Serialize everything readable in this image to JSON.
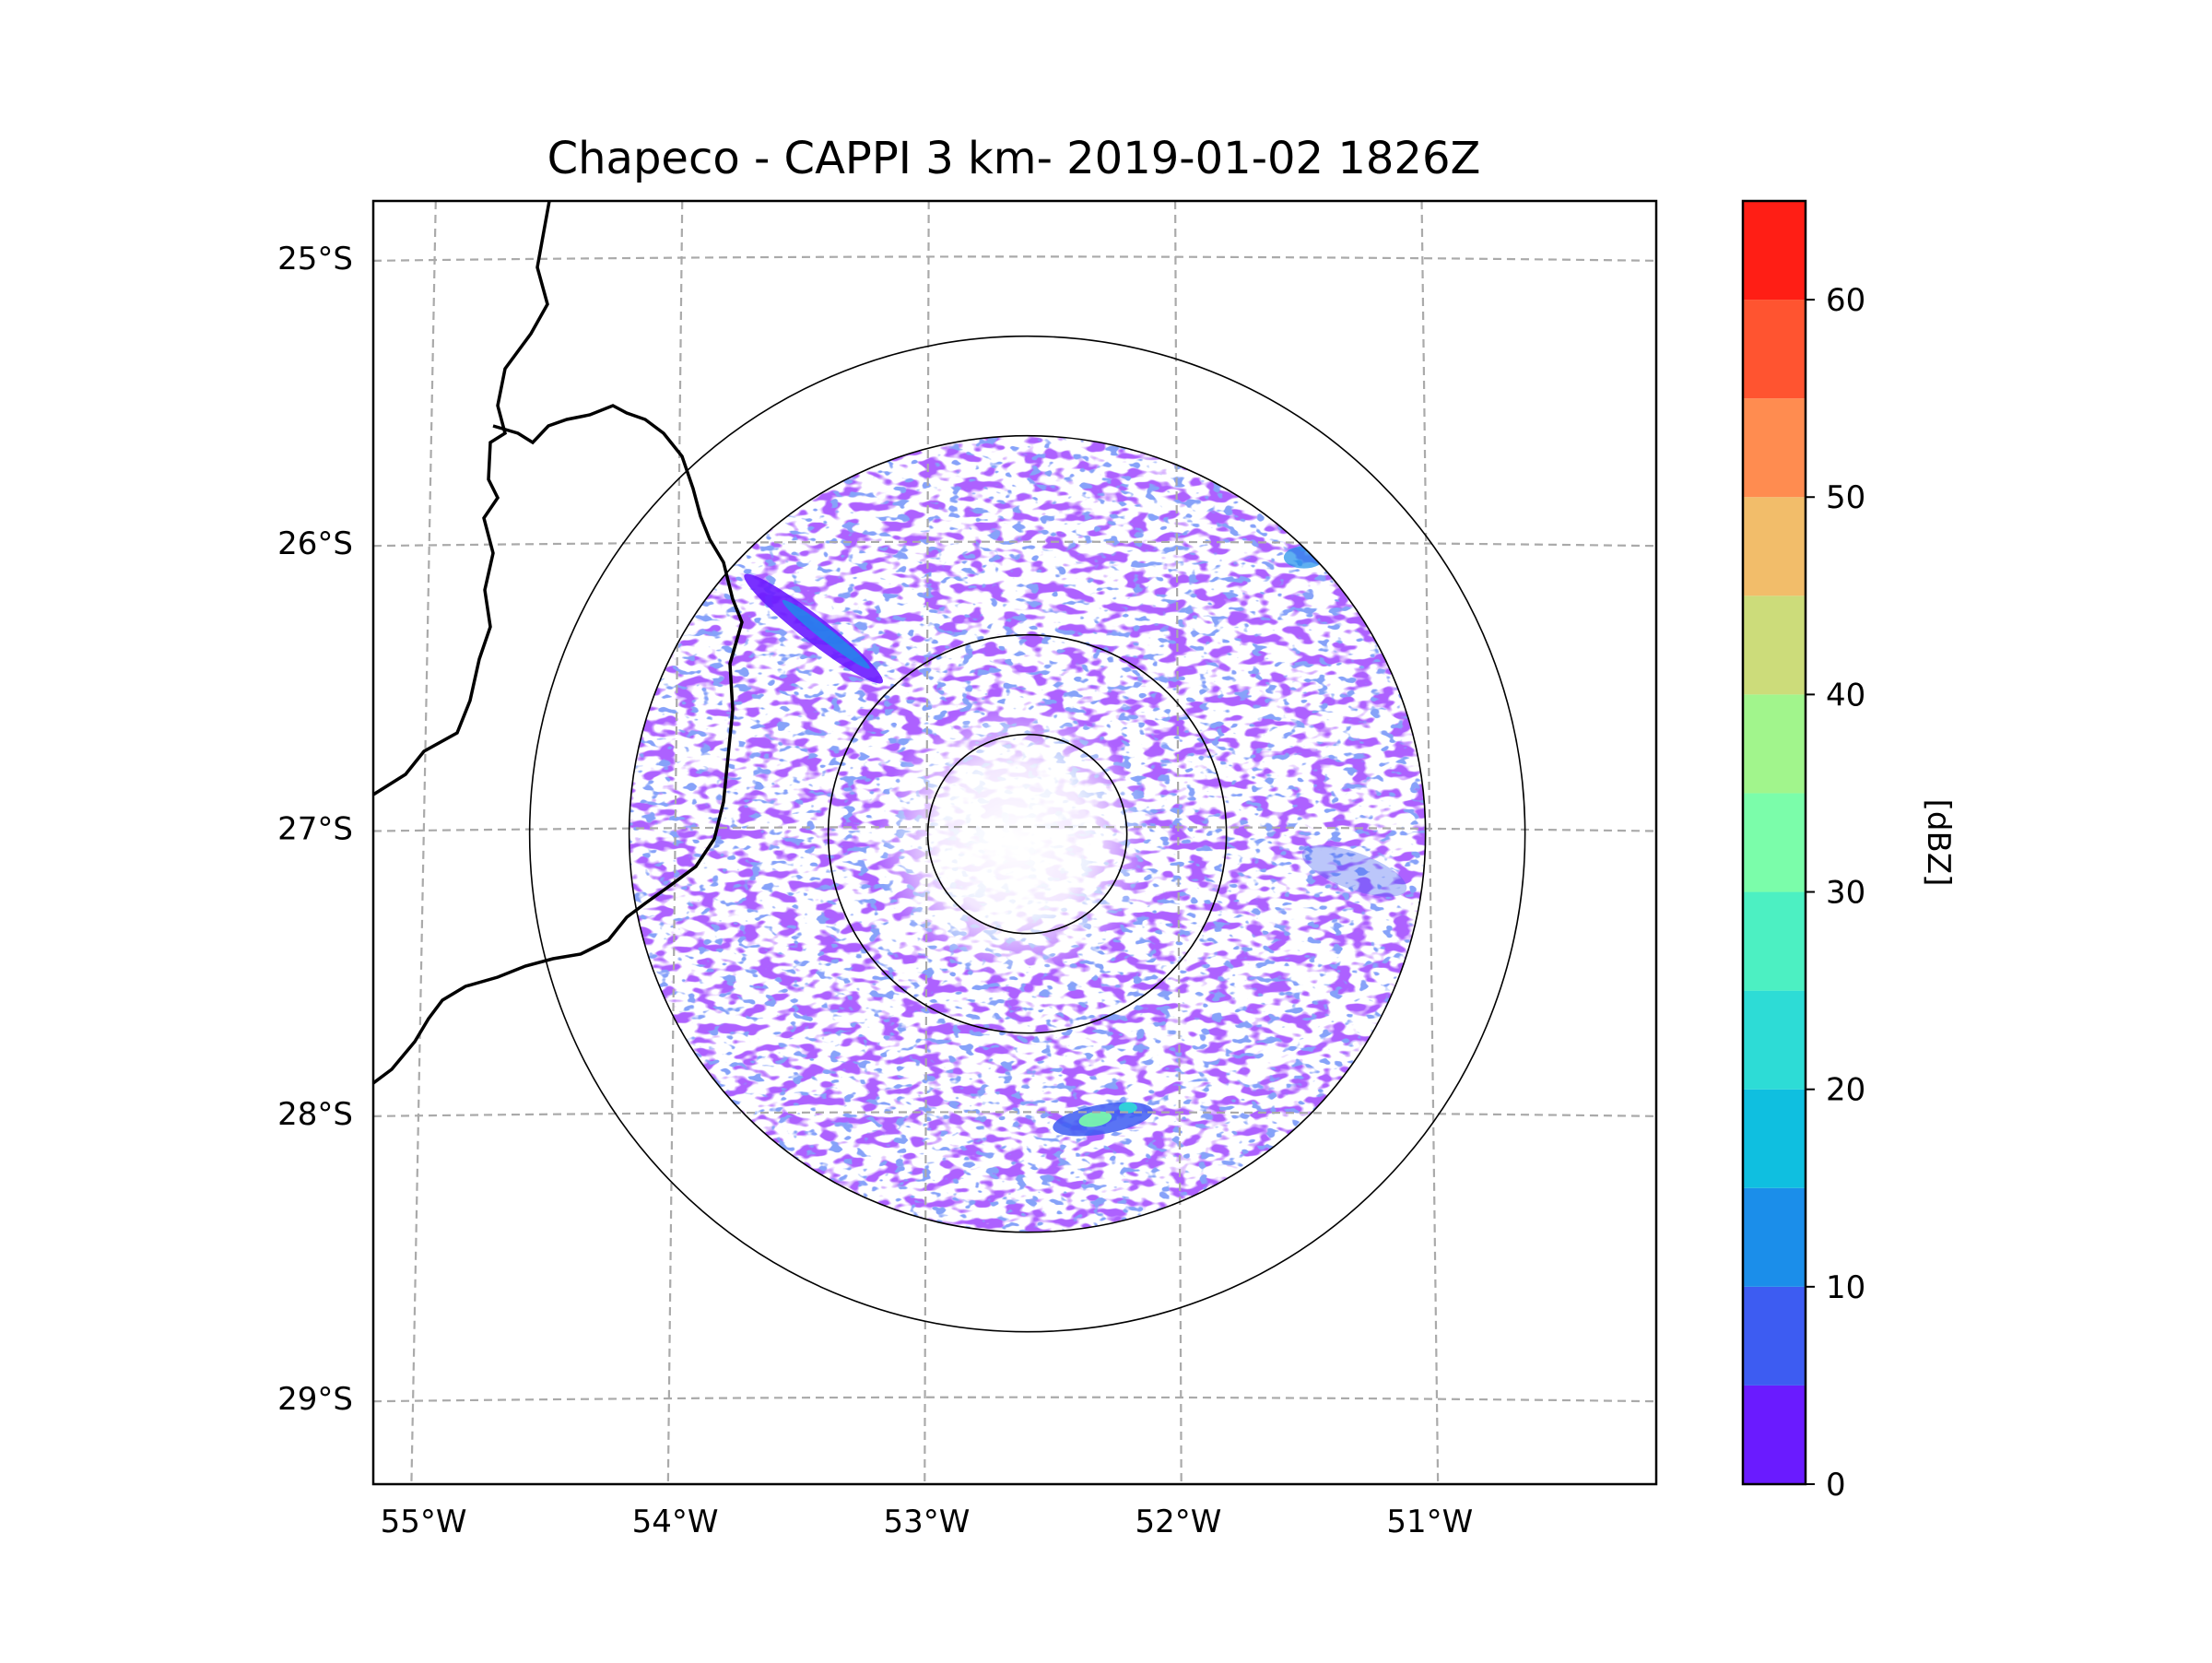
{
  "title": "Chapeco - CAPPI 3 km- 2019-01-02 1826Z",
  "map": {
    "lat_labels": [
      "25°S",
      "26°S",
      "27°S",
      "28°S",
      "29°S"
    ],
    "lon_labels": [
      "55°W",
      "54°W",
      "53°W",
      "52°W",
      "51°W"
    ],
    "lat_range": [
      -29.3,
      -24.8
    ],
    "lon_range": [
      -55.2,
      -50.1
    ],
    "radar_center": {
      "lon": -52.6,
      "lat": -27.02
    },
    "range_rings_km": [
      50,
      100,
      200,
      250
    ],
    "gridline_color": "#aaaaaa",
    "border_color": "#000000"
  },
  "colorbar": {
    "label": "[dBZ]",
    "ticks": [
      "0",
      "10",
      "20",
      "30",
      "40",
      "50",
      "60"
    ],
    "range": [
      0,
      65
    ],
    "step": 5,
    "colors": [
      "#6a1bff",
      "#3d5cf2",
      "#1b8eea",
      "#0fbfe0",
      "#2ddcd6",
      "#4cf0c2",
      "#7bfdaa",
      "#a1f58c",
      "#ccdc7a",
      "#f2bd6a",
      "#ff8c50",
      "#ff5430",
      "#ff1e15"
    ]
  },
  "chart_data": {
    "type": "heatmap",
    "title": "Chapeco - CAPPI 3 km- 2019-01-02 1826Z",
    "xlabel": "",
    "ylabel": "",
    "x_tick_labels": [
      "55°W",
      "54°W",
      "53°W",
      "52°W",
      "51°W"
    ],
    "y_tick_labels": [
      "25°S",
      "26°S",
      "27°S",
      "28°S",
      "29°S"
    ],
    "colorbar_label": "[dBZ]",
    "value_range": [
      0,
      65
    ],
    "description_of_field": "radar reflectivity echoes mostly 0-15 dBZ, scattered within 250 km ring; strongest cells ~20-35 dBZ near 52.3°W 28.0°S and an elongated band near 53.5°W 26.3°S"
  }
}
